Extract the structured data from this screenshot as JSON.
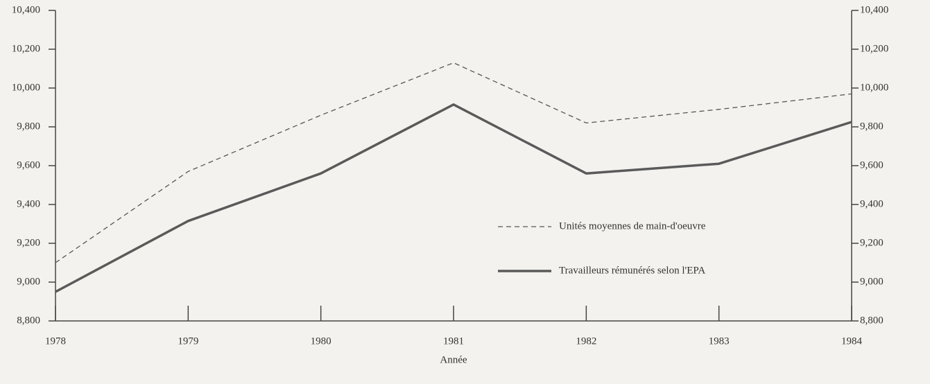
{
  "chart_data": {
    "type": "line",
    "x_label": "Année",
    "categories": [
      "1978",
      "1979",
      "1980",
      "1981",
      "1982",
      "1983",
      "1984"
    ],
    "series": [
      {
        "name": "Unités moyennes de main-d'oeuvre",
        "color": "#555555",
        "dashed": true,
        "values": [
          9100,
          9570,
          9860,
          10130,
          9820,
          9890,
          9970
        ]
      },
      {
        "name": "Travailleurs rémunérés selon l'EPA",
        "color": "#5a5a5a",
        "dashed": false,
        "values": [
          8950,
          9315,
          9560,
          9915,
          9560,
          9610,
          9825
        ]
      }
    ],
    "ylim": [
      8800,
      10400
    ],
    "yticks": [
      {
        "value": 8800,
        "label": "8,800"
      },
      {
        "value": 9000,
        "label": "9,000"
      },
      {
        "value": 9200,
        "label": "9,200"
      },
      {
        "value": 9400,
        "label": "9,400"
      },
      {
        "value": 9600,
        "label": "9,600"
      },
      {
        "value": 9800,
        "label": "9,800"
      },
      {
        "value": 10000,
        "label": "10,000"
      },
      {
        "value": 10200,
        "label": "10,200"
      },
      {
        "value": 10400,
        "label": "10,400"
      }
    ],
    "y2lim": [
      8800,
      10400
    ],
    "y2ticks": [
      {
        "value": 8800,
        "label": "8,800"
      },
      {
        "value": 9000,
        "label": "9,000"
      },
      {
        "value": 9200,
        "label": "9,200"
      },
      {
        "value": 9400,
        "label": "9,400"
      },
      {
        "value": 9600,
        "label": "9,600"
      },
      {
        "value": 9800,
        "label": "9,800"
      },
      {
        "value": 10000,
        "label": "10,000"
      },
      {
        "value": 10200,
        "label": "10,200"
      },
      {
        "value": 10400,
        "label": "10,400"
      }
    ],
    "grid": false,
    "legend": "right"
  }
}
